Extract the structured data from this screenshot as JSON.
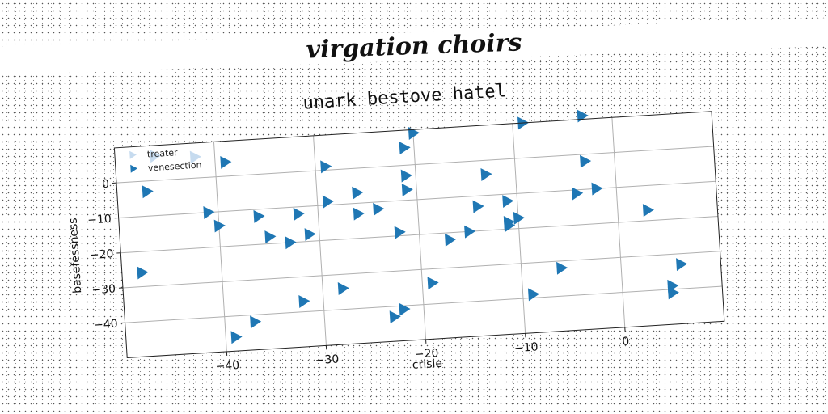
{
  "figure": {
    "super_title": "virgation choirs"
  },
  "chart_data": {
    "type": "scatter",
    "title": "unark bestove hatel",
    "xlabel": "crisle",
    "ylabel": "basefessness",
    "xlim": [
      -50,
      10
    ],
    "ylim": [
      -50,
      10
    ],
    "xticks": [
      -40,
      -30,
      -20,
      -10,
      0
    ],
    "yticks": [
      0,
      -10,
      -20,
      -30,
      -40
    ],
    "xtick_labels": [
      "−40",
      "−30",
      "−20",
      "−10",
      "0"
    ],
    "ytick_labels": [
      "0",
      "−10",
      "−20",
      "−30",
      "−40"
    ],
    "grid": true,
    "legend_position": "top-left",
    "marker": "triangle-right",
    "series": [
      {
        "name": "treater",
        "color": "#c6dbef",
        "points": [
          [
            -46,
            7
          ],
          [
            -42,
            6
          ]
        ]
      },
      {
        "name": "venesection",
        "color": "#1f77b4",
        "points": [
          [
            -47,
            -3
          ],
          [
            -39,
            4
          ],
          [
            -41,
            -10
          ],
          [
            -40,
            -14
          ],
          [
            -48,
            -26
          ],
          [
            -36,
            -12
          ],
          [
            -35,
            -18
          ],
          [
            -32,
            -12
          ],
          [
            -33,
            -20
          ],
          [
            -31,
            -18
          ],
          [
            -29,
            1
          ],
          [
            -29,
            -9
          ],
          [
            -26,
            -7
          ],
          [
            -24,
            -12
          ],
          [
            -26,
            -13
          ],
          [
            -22,
            -19
          ],
          [
            -21,
            5
          ],
          [
            -20,
            9
          ],
          [
            -21,
            -3
          ],
          [
            -21,
            -7
          ],
          [
            -17,
            -22
          ],
          [
            -15,
            -20
          ],
          [
            -14,
            -13
          ],
          [
            -13,
            -4
          ],
          [
            -11,
            -12
          ],
          [
            -11,
            -18
          ],
          [
            -11,
            -19
          ],
          [
            -10,
            -17
          ],
          [
            -9,
            10
          ],
          [
            -3,
            11
          ],
          [
            -3,
            -2
          ],
          [
            -4,
            -11
          ],
          [
            -2,
            -10
          ],
          [
            3,
            -17
          ],
          [
            -6,
            -32
          ],
          [
            -9,
            -39
          ],
          [
            -28,
            -34
          ],
          [
            -32,
            -37
          ],
          [
            -37,
            -42
          ],
          [
            -39,
            -46
          ],
          [
            -23,
            -43
          ],
          [
            -22,
            -41
          ],
          [
            -19,
            -34
          ],
          [
            6,
            -33
          ],
          [
            5,
            -39
          ],
          [
            5,
            -41
          ]
        ]
      }
    ]
  }
}
